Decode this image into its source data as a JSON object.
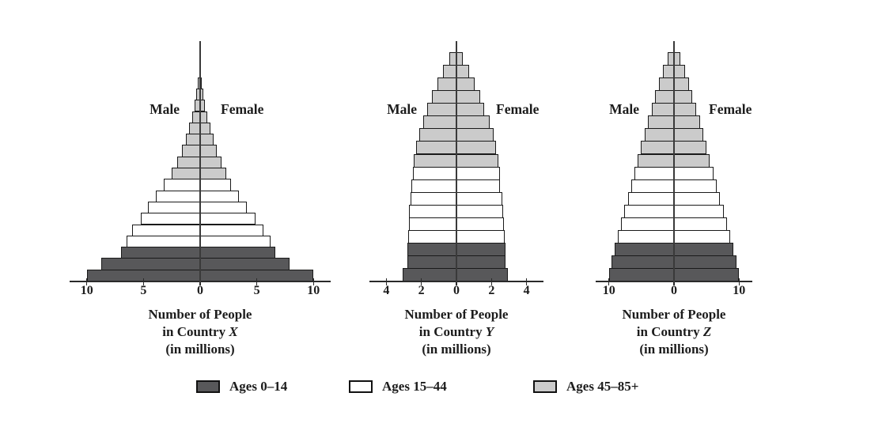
{
  "figure": {
    "male_label": "Male",
    "female_label": "Female",
    "background_color": "#ffffff",
    "bar_border_color": "#1a1a1a",
    "legend": [
      {
        "label": "Ages 0–14",
        "color": "#58585a",
        "swatch_name": "dark-gray-swatch"
      },
      {
        "label": "Ages 15–44",
        "color": "#ffffff",
        "swatch_name": "white-swatch"
      },
      {
        "label": "Ages 45–85+",
        "color": "#cbcbcb",
        "swatch_name": "light-gray-swatch"
      }
    ]
  },
  "chart_data": [
    {
      "type": "bar",
      "subtype": "population-pyramid",
      "country": "X",
      "caption": {
        "line1": "Number of People",
        "line2_prefix": "in Country ",
        "country_letter": "X",
        "line3": "(in millions)"
      },
      "axis_tick_labels": [
        "10",
        "5",
        "0",
        "5",
        "10"
      ],
      "axis_max_each_side": 10,
      "bands_order": "bottom-to-top",
      "band_groups": [
        {
          "legend": "Ages 0–14",
          "bands": 3
        },
        {
          "legend": "Ages 15–44",
          "bands": 6
        },
        {
          "legend": "Ages 45–85+",
          "bands": 9
        }
      ],
      "series": [
        {
          "name": "Male",
          "values": [
            10.0,
            8.7,
            7.0,
            6.5,
            6.0,
            5.2,
            4.6,
            3.9,
            3.2,
            2.5,
            2.0,
            1.6,
            1.25,
            0.95,
            0.7,
            0.5,
            0.35,
            0.2
          ]
        },
        {
          "name": "Female",
          "values": [
            10.0,
            7.9,
            6.6,
            6.2,
            5.6,
            4.9,
            4.1,
            3.4,
            2.7,
            2.3,
            1.9,
            1.5,
            1.2,
            0.9,
            0.65,
            0.45,
            0.3,
            0.17
          ]
        }
      ]
    },
    {
      "type": "bar",
      "subtype": "population-pyramid",
      "country": "Y",
      "caption": {
        "line1": "Number of People",
        "line2_prefix": "in Country ",
        "country_letter": "Y",
        "line3": "(in millions)"
      },
      "axis_tick_labels": [
        "4",
        "2",
        "0",
        "2",
        "4"
      ],
      "axis_max_each_side": 4,
      "bands_order": "bottom-to-top",
      "band_groups": [
        {
          "legend": "Ages 0–14",
          "bands": 3
        },
        {
          "legend": "Ages 15–44",
          "bands": 6
        },
        {
          "legend": "Ages 45–85+",
          "bands": 9
        }
      ],
      "series": [
        {
          "name": "Male",
          "values": [
            3.05,
            2.8,
            2.8,
            2.75,
            2.7,
            2.7,
            2.6,
            2.55,
            2.5,
            2.45,
            2.3,
            2.1,
            1.9,
            1.65,
            1.4,
            1.1,
            0.75,
            0.4
          ]
        },
        {
          "name": "Female",
          "values": [
            2.95,
            2.8,
            2.8,
            2.75,
            2.7,
            2.65,
            2.6,
            2.5,
            2.5,
            2.4,
            2.25,
            2.1,
            1.9,
            1.6,
            1.35,
            1.05,
            0.7,
            0.35
          ]
        }
      ]
    },
    {
      "type": "bar",
      "subtype": "population-pyramid",
      "country": "Z",
      "caption": {
        "line1": "Number of People",
        "line2_prefix": "in Country ",
        "country_letter": "Z",
        "line3": "(in millions)"
      },
      "axis_tick_labels": [
        "10",
        "0",
        "10"
      ],
      "axis_max_each_side": 10,
      "bands_order": "bottom-to-top",
      "band_groups": [
        {
          "legend": "Ages 0–14",
          "bands": 3
        },
        {
          "legend": "Ages 15–44",
          "bands": 6
        },
        {
          "legend": "Ages 45–85+",
          "bands": 9
        }
      ],
      "series": [
        {
          "name": "Male",
          "values": [
            10.0,
            9.6,
            9.1,
            8.6,
            8.1,
            7.6,
            7.1,
            6.6,
            6.1,
            5.6,
            5.1,
            4.55,
            4.0,
            3.45,
            2.9,
            2.3,
            1.7,
            1.0
          ]
        },
        {
          "name": "Female",
          "values": [
            10.0,
            9.6,
            9.1,
            8.6,
            8.1,
            7.6,
            7.1,
            6.6,
            6.1,
            5.5,
            5.0,
            4.5,
            3.95,
            3.4,
            2.85,
            2.25,
            1.65,
            0.95
          ]
        }
      ]
    }
  ]
}
